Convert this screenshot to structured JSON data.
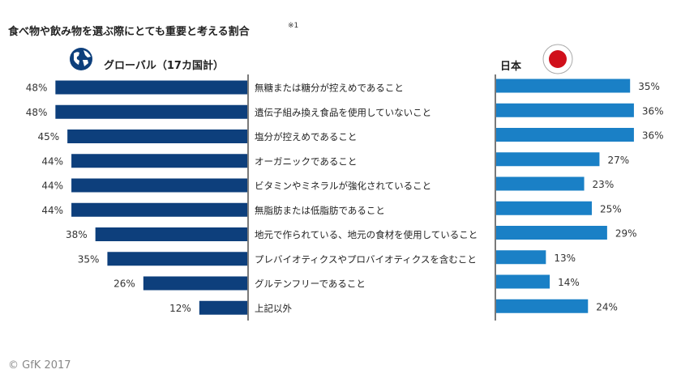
{
  "title": "食べ物や飲み物を選ぶ際にとても重要と考える割合",
  "footnote_mark": "※1",
  "global_header": "グローバル（17カ国計）",
  "japan_header": "日本",
  "credit": "© GfK 2017",
  "colors": {
    "global": "#0d3f7c",
    "japan": "#1a80c6",
    "flag_red": "#d0101b"
  },
  "icons": {
    "global": "globe-icon",
    "japan": "japan-flag-icon"
  },
  "chart_data": {
    "type": "bar",
    "orientation": "horizontal-butterfly",
    "categories": [
      "無糖または糖分が控えめであること",
      "遺伝子組み換え食品を使用していないこと",
      "塩分が控えめであること",
      "オーガニックであること",
      "ビタミンやミネラルが強化されていること",
      "無脂肪または低脂肪であること",
      "地元で作られている、地元の食材を使用していること",
      "プレバイオティクスやプロバイオティクスを含むこと",
      "グルテンフリーであること",
      "上記以外"
    ],
    "series": [
      {
        "name": "グローバル（17カ国計）",
        "values": [
          48,
          48,
          45,
          44,
          44,
          44,
          38,
          35,
          26,
          12
        ],
        "labels": [
          "48%",
          "48%",
          "45%",
          "44%",
          "44%",
          "44%",
          "38%",
          "35%",
          "26%",
          "12%"
        ]
      },
      {
        "name": "日本",
        "values": [
          35,
          36,
          36,
          27,
          23,
          25,
          29,
          13,
          14,
          24
        ],
        "labels": [
          "35%",
          "36%",
          "36%",
          "27%",
          "23%",
          "25%",
          "29%",
          "13%",
          "14%",
          "24%"
        ]
      }
    ],
    "unit": "%",
    "grid": false
  }
}
